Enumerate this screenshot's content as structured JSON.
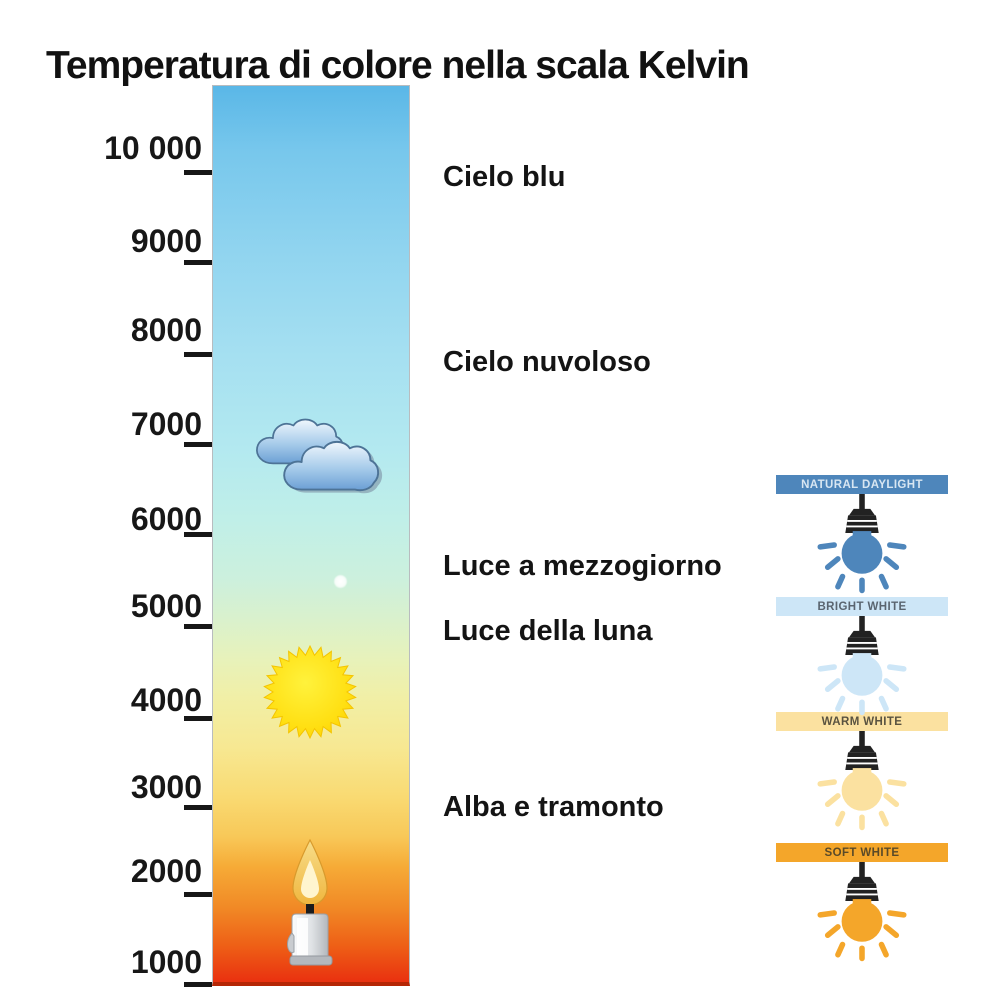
{
  "title": "Temperatura di colore nella scala Kelvin",
  "axis": {
    "unit": "Kelvin",
    "ticks": [
      "10 000",
      "9000",
      "8000",
      "7000",
      "6000",
      "5000",
      "4000",
      "3000",
      "2000",
      "1000"
    ]
  },
  "bar_labels": [
    {
      "text": "Cielo blu"
    },
    {
      "text": "Cielo nuvoloso"
    },
    {
      "text": "Luce a mezzogiorno"
    },
    {
      "text": "Luce della luna"
    },
    {
      "text": "Alba e tramonto"
    }
  ],
  "icons": [
    "clouds-icon",
    "moon-dot-icon",
    "sun-icon",
    "candle-icon"
  ],
  "bulbs": [
    {
      "label": "NATURAL DAYLIGHT",
      "banner_color": "#4e86bb",
      "text_color": "#d8e6f2",
      "bulb_color": "#4e86bb"
    },
    {
      "label": "BRIGHT WHITE",
      "banner_color": "#cde6f7",
      "text_color": "#5a6570",
      "bulb_color": "#cde6f7"
    },
    {
      "label": "WARM WHITE",
      "banner_color": "#fbe1a0",
      "text_color": "#5a5340",
      "bulb_color": "#fbe1a0"
    },
    {
      "label": "SOFT WHITE",
      "banner_color": "#f4a62a",
      "text_color": "#5a4a28",
      "bulb_color": "#f4a62a"
    }
  ],
  "bar_gradient": {
    "top": "#5ab7e7",
    "bottom": "#e93110"
  },
  "chart_data": {
    "type": "scale",
    "title": "Temperatura di colore nella scala Kelvin",
    "orientation": "vertical",
    "axis_range_K": [
      1000,
      10000
    ],
    "tick_values_K": [
      10000,
      9000,
      8000,
      7000,
      6000,
      5000,
      4000,
      3000,
      2000,
      1000
    ],
    "annotations": [
      {
        "label": "Cielo blu",
        "approx_K": 10000
      },
      {
        "label": "Cielo nuvoloso",
        "approx_K": 7900
      },
      {
        "label": "Luce a mezzogiorno",
        "approx_K": 5600
      },
      {
        "label": "Luce della luna",
        "approx_K": 4900
      },
      {
        "label": "Alba e tramonto",
        "approx_K": 3000
      }
    ],
    "icon_markers": [
      {
        "icon": "clouds-icon",
        "approx_K": 6800
      },
      {
        "icon": "moon-dot-icon",
        "approx_K": 5500
      },
      {
        "icon": "sun-icon",
        "approx_K": 4250
      },
      {
        "icon": "candle-icon",
        "approx_K": 1600
      }
    ],
    "legend": [
      "NATURAL DAYLIGHT",
      "BRIGHT WHITE",
      "WARM WHITE",
      "SOFT WHITE"
    ],
    "legend_position": "right"
  }
}
